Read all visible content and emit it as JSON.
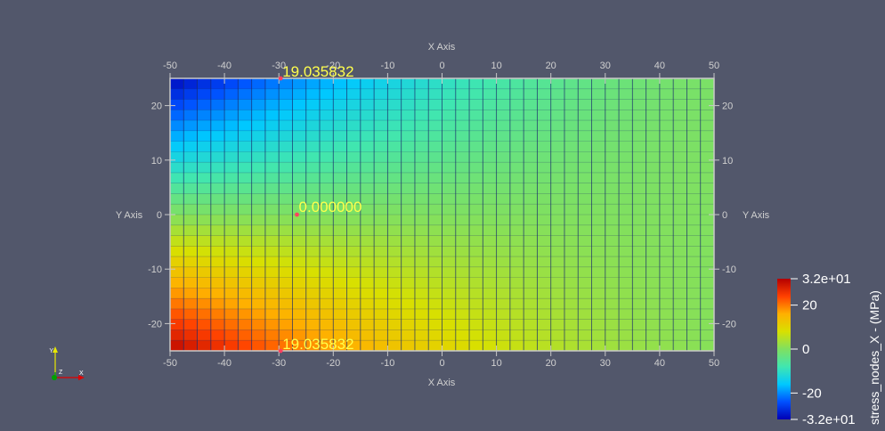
{
  "viewport": {
    "background": "#52576b",
    "axis_color": "#c8c8c8",
    "axis_text_color": "#d0d0d0",
    "label_color": "#ffff4c",
    "grid_line_color": "#1a2a6e"
  },
  "axes": {
    "x_title": "X Axis",
    "y_title": "Y Axis",
    "x_range": [
      -50,
      50
    ],
    "y_range": [
      -25,
      25
    ],
    "x_ticks": [
      -50,
      -40,
      -30,
      -20,
      -10,
      0,
      10,
      20,
      30,
      40,
      50
    ],
    "y_ticks": [
      20,
      10,
      0,
      -10,
      -20
    ]
  },
  "mesh": {
    "columns": 40,
    "rows": 26,
    "field_min": -32,
    "field_max": 32
  },
  "point_labels": [
    {
      "text": "19.035832",
      "x": -30,
      "y": 25
    },
    {
      "text": "0.000000",
      "x": -27,
      "y": 0
    },
    {
      "text": "19.035832",
      "x": -30,
      "y": -25
    }
  ],
  "colorbar": {
    "title": "stress_nodes_X - (MPa)",
    "labels": [
      "3.2e+01",
      "20",
      "0",
      "-20",
      "-3.2e+01"
    ],
    "values": [
      32,
      20,
      0,
      -20,
      -32
    ],
    "colors": [
      "#0000b4",
      "#0050ff",
      "#00c8ff",
      "#40e6b0",
      "#80e060",
      "#d8e000",
      "#ffb000",
      "#ff4000",
      "#b40000"
    ]
  },
  "orientation_axes": {
    "y_label": "Y",
    "z_label": "Z",
    "x_label": "X"
  }
}
